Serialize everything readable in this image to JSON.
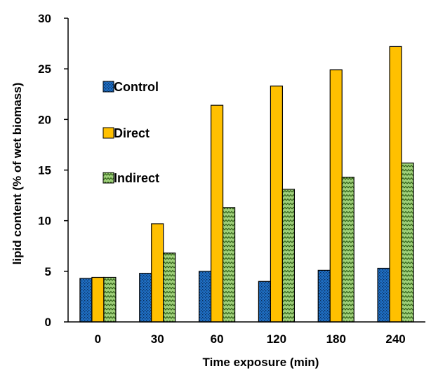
{
  "chart_data": {
    "type": "bar",
    "categories": [
      "0",
      "30",
      "60",
      "120",
      "180",
      "240"
    ],
    "series": [
      {
        "name": "Control",
        "values": [
          4.3,
          4.8,
          5.0,
          4.0,
          5.1,
          5.3
        ],
        "color": "#1f6fc4",
        "pattern": "dots"
      },
      {
        "name": "Direct",
        "values": [
          4.4,
          9.7,
          21.4,
          23.3,
          24.9,
          27.2
        ],
        "color": "#ffc000",
        "pattern": "solid"
      },
      {
        "name": "Indirect",
        "values": [
          4.4,
          6.8,
          11.3,
          13.1,
          14.3,
          15.7
        ],
        "color": "#70ad47",
        "pattern": "zigzag"
      }
    ],
    "xlabel": "Time exposure (min)",
    "ylabel": "lipid content (% of wet biomass)",
    "ylim": [
      0,
      30
    ],
    "yticks": [
      0,
      5,
      10,
      15,
      20,
      25,
      30
    ],
    "grid": false,
    "legend_position": "upper-left"
  }
}
